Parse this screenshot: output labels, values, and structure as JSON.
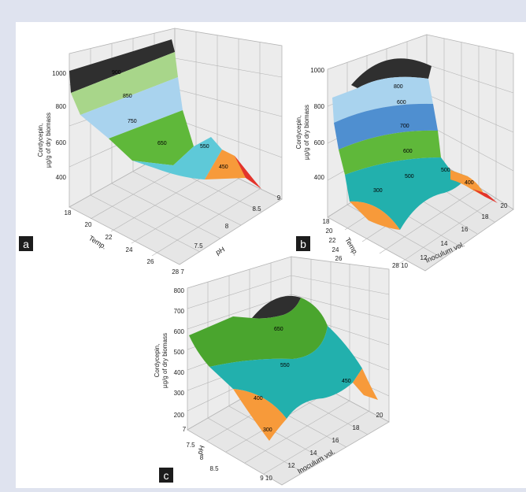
{
  "colors": {
    "frame_bg": "#dfe3ef",
    "panel_bg": "#ffffff",
    "wall": "#ececec",
    "floor": "#e6e6e6",
    "grid": "#b4b4b4",
    "black_band": "#2f2f2f",
    "light_green": "#a8d68a",
    "light_blue": "#a9d3ee",
    "mid_blue": "#4f8fd0",
    "green": "#5fb83a",
    "dark_green": "#4aa52e",
    "cyan": "#5ec9d8",
    "teal": "#22b0ad",
    "orange": "#f79a3a",
    "red": "#e3342b",
    "label_box": "#1c1c1c"
  },
  "chart_data": [
    {
      "panel_label": "a",
      "type": "surface3d",
      "zlabel_line1": "Cordycepin,",
      "zlabel_line2": "µg/g of dry biomass",
      "xlabel": "Temp.",
      "ylabel": "pH",
      "zticks": [
        "1000",
        "800",
        "600",
        "400"
      ],
      "xticks": [
        "18",
        "20",
        "22",
        "24",
        "26"
      ],
      "yticks": [
        "28 7",
        "7.5",
        "8",
        "8.5",
        "9"
      ],
      "contour_levels": [
        "900",
        "850",
        "750",
        "650",
        "550",
        "450"
      ]
    },
    {
      "panel_label": "b",
      "type": "surface3d",
      "zlabel_line1": "Cordycepin,",
      "zlabel_line2": "µg/g of dry biomass",
      "xlabel": "Temp.",
      "ylabel": "Inoculum vol.",
      "zticks": [
        "1000",
        "800",
        "600",
        "400"
      ],
      "xticks": [
        "18",
        "20",
        "22",
        "24",
        "26",
        "28 10"
      ],
      "yticks": [
        "12",
        "14",
        "16",
        "18",
        "20"
      ],
      "contour_levels": [
        "800",
        "600",
        "700",
        "600",
        "500",
        "500",
        "400",
        "300"
      ]
    },
    {
      "panel_label": "c",
      "type": "surface3d",
      "zlabel_line1": "Cordycepin,",
      "zlabel_line2": "µg/g of dry biomass",
      "xlabel": "pH",
      "ylabel": "Inoculum vol.",
      "zticks": [
        "800",
        "700",
        "600",
        "500",
        "400",
        "300",
        "200"
      ],
      "xticks": [
        "7",
        "7.5",
        "8",
        "8.5",
        "9 10"
      ],
      "yticks": [
        "12",
        "14",
        "16",
        "18",
        "20"
      ],
      "contour_levels": [
        "650",
        "550",
        "400",
        "450",
        "300"
      ]
    }
  ]
}
